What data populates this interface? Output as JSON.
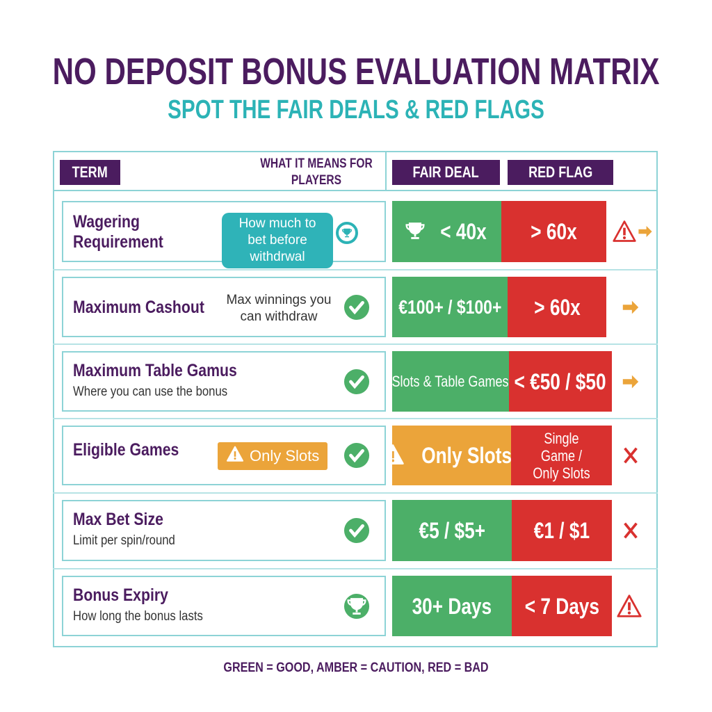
{
  "title": "NO DEPOSIT BONUS EVALUATION MATRIX",
  "subtitle": "SPOT THE FAIR DEALS & RED FLAGS",
  "header": {
    "term": "TERM",
    "what_it_means": "WHAT IT MEANS FOR PLAYERS",
    "fair_deal": "FAIR DEAL",
    "red_flag": "RED FLAG"
  },
  "colors": {
    "purple": "#4b1c5f",
    "teal": "#2cb3b6",
    "green": "#4caf68",
    "red": "#d9312f",
    "amber": "#eba43a"
  },
  "rows": [
    {
      "term": "Wagering Requirement",
      "meaning": "How much to bet before withdrwal",
      "meaning_style": "teal-callout",
      "meaning_icon": "trophy-icon",
      "fair": "< 40x",
      "fair_icon": "trophy-icon",
      "fair_color": "green",
      "red": "> 60x",
      "trailing_icon": "warning-arrow-icon"
    },
    {
      "term": "Maximum Cashout",
      "meaning": "Max winnings you can withdraw",
      "meaning_icon": "check-icon",
      "fair": "€100+ / $100+",
      "fair_color": "green",
      "red": "> 60x",
      "trailing_icon": "arrow-icon"
    },
    {
      "term": "Maximum Table Gamus",
      "description": "Where you can use the bonus",
      "meaning_icon": "check-icon",
      "fair": "Slots & Table Games",
      "fair_color": "green",
      "red": "< €50 / $50",
      "trailing_icon": "arrow-icon"
    },
    {
      "term": "Eligible Games",
      "meaning": "Only Slots",
      "meaning_style": "amber-pill",
      "meaning_icon": "check-icon",
      "fair": "Only Slots",
      "fair_icon": "warning-icon",
      "fair_color": "amber",
      "red": "Single Game / Only Slots",
      "trailing_icon": "x-icon"
    },
    {
      "term": "Max Bet Size",
      "description": "Limit per spin/round",
      "meaning_icon": "check-icon",
      "fair": "€5 / $5+",
      "fair_color": "green",
      "red": "€1 / $1",
      "trailing_icon": "x-icon"
    },
    {
      "term": "Bonus Expiry",
      "description": "How long the bonus lasts",
      "meaning_icon": "trophy-icon",
      "fair": "30+ Days",
      "fair_color": "green",
      "red": "< 7 Days",
      "trailing_icon": "warning-icon"
    }
  ],
  "legend": "GREEN = GOOD, AMBER = CAUTION,  RED = BAD"
}
